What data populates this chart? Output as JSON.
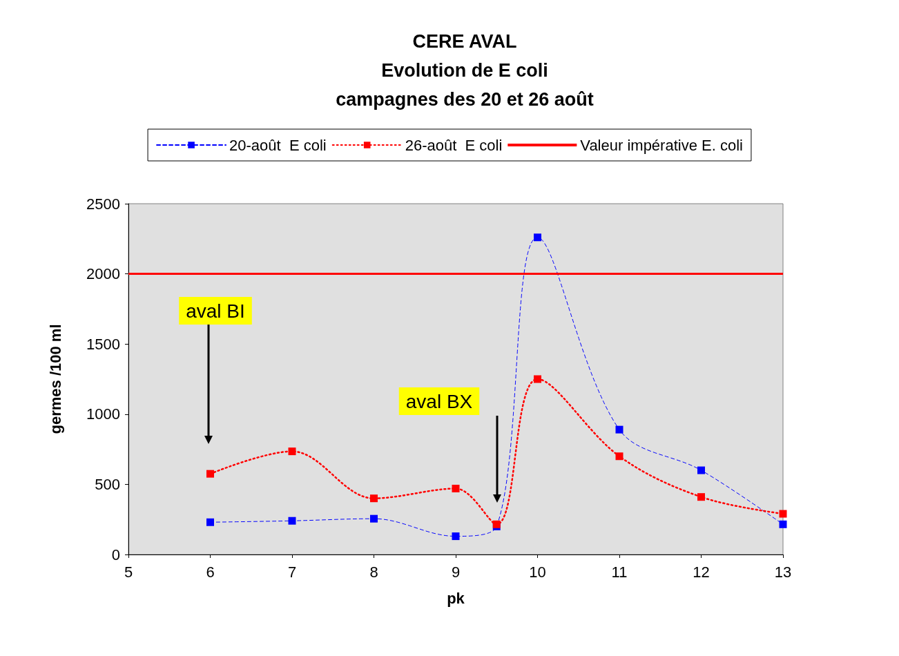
{
  "chart_data": {
    "type": "line",
    "title": "CERE AVAL\nEvolution de E coli\ncampagnes des 20 et 26 août",
    "xlabel": "pk",
    "ylabel": "germes /100 ml",
    "x": [
      6,
      7,
      8,
      9,
      9.5,
      10,
      11,
      12,
      13
    ],
    "series": [
      {
        "name": "20-août  E coli",
        "color": "#0000ff",
        "line_style": "dashed",
        "values": [
          230,
          240,
          255,
          130,
          200,
          2260,
          890,
          600,
          215
        ]
      },
      {
        "name": "26-août  E coli",
        "color": "#ff0000",
        "line_style": "dotted",
        "values": [
          575,
          735,
          400,
          470,
          215,
          1250,
          700,
          410,
          290
        ]
      }
    ],
    "ref_lines": [
      {
        "axis": "y",
        "value": 2000,
        "label": "Valeur impérative E. coli",
        "color": "#ff0000",
        "line_style": "solid"
      }
    ],
    "annotations": [
      "aval BI",
      "aval BX"
    ],
    "xlim": [
      5,
      13
    ],
    "xticks": [
      5,
      6,
      7,
      8,
      9,
      10,
      11,
      12,
      13
    ],
    "ylim": [
      0,
      2500
    ],
    "yticks": [
      0,
      500,
      1000,
      1500,
      2000,
      2500
    ],
    "grid": false,
    "legend": "top",
    "marker": "square"
  }
}
